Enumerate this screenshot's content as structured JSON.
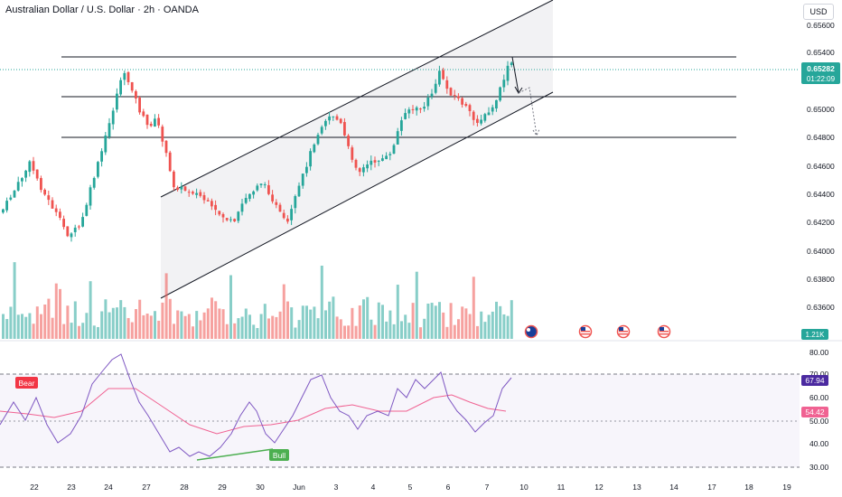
{
  "header": {
    "title": "Australian Dollar / U.S. Dollar · 2h · OANDA",
    "currency": "USD"
  },
  "price_axis": {
    "ticks": [
      "0.65600",
      "0.65400",
      "0.65200",
      "0.65000",
      "0.64800",
      "0.64600",
      "0.64400",
      "0.64200",
      "0.64000",
      "0.63800",
      "0.63600"
    ],
    "last_price": "0.65282",
    "countdown": "01:22:09",
    "volume_label": "1.21K"
  },
  "rsi_axis": {
    "ticks": [
      "80.00",
      "70.00",
      "60.00",
      "50.00",
      "40.00",
      "30.00"
    ],
    "rsi_value": "67.94",
    "ma_value": "54.42",
    "bear_label": "Bear",
    "bull_label": "Bull"
  },
  "time_axis": {
    "labels": [
      "22",
      "23",
      "24",
      "27",
      "28",
      "29",
      "30",
      "Jun",
      "3",
      "4",
      "5",
      "6",
      "7",
      "10",
      "11",
      "12",
      "13",
      "14",
      "17",
      "18",
      "19"
    ]
  },
  "colors": {
    "up": "#26a69a",
    "down": "#ef5350",
    "rsi": "#7e57c2",
    "rsi_ma": "#f06292",
    "channel_fill": "#f1f1f3"
  },
  "chart_data": {
    "type": "candlestick",
    "price_range": [
      0.6355,
      0.6565
    ],
    "horizontal_levels": [
      0.6536,
      0.6509,
      0.6482
    ],
    "channel": {
      "lower": {
        "from": {
          "time": "May 27",
          "price": 0.6369
        },
        "to": {
          "time": "Jun 10",
          "price": 0.651
        }
      },
      "upper": {
        "from": {
          "time": "May 27",
          "price": 0.644
        },
        "to": {
          "time": "Jun 10",
          "price": 0.6565
        }
      }
    },
    "rsi": {
      "range": [
        25,
        85
      ],
      "upper_band": 70,
      "lower_band": 30,
      "mid": 50,
      "current": 67.94,
      "ma_current": 54.42
    },
    "events": [
      "AUD",
      "USD",
      "USD",
      "USD"
    ]
  }
}
